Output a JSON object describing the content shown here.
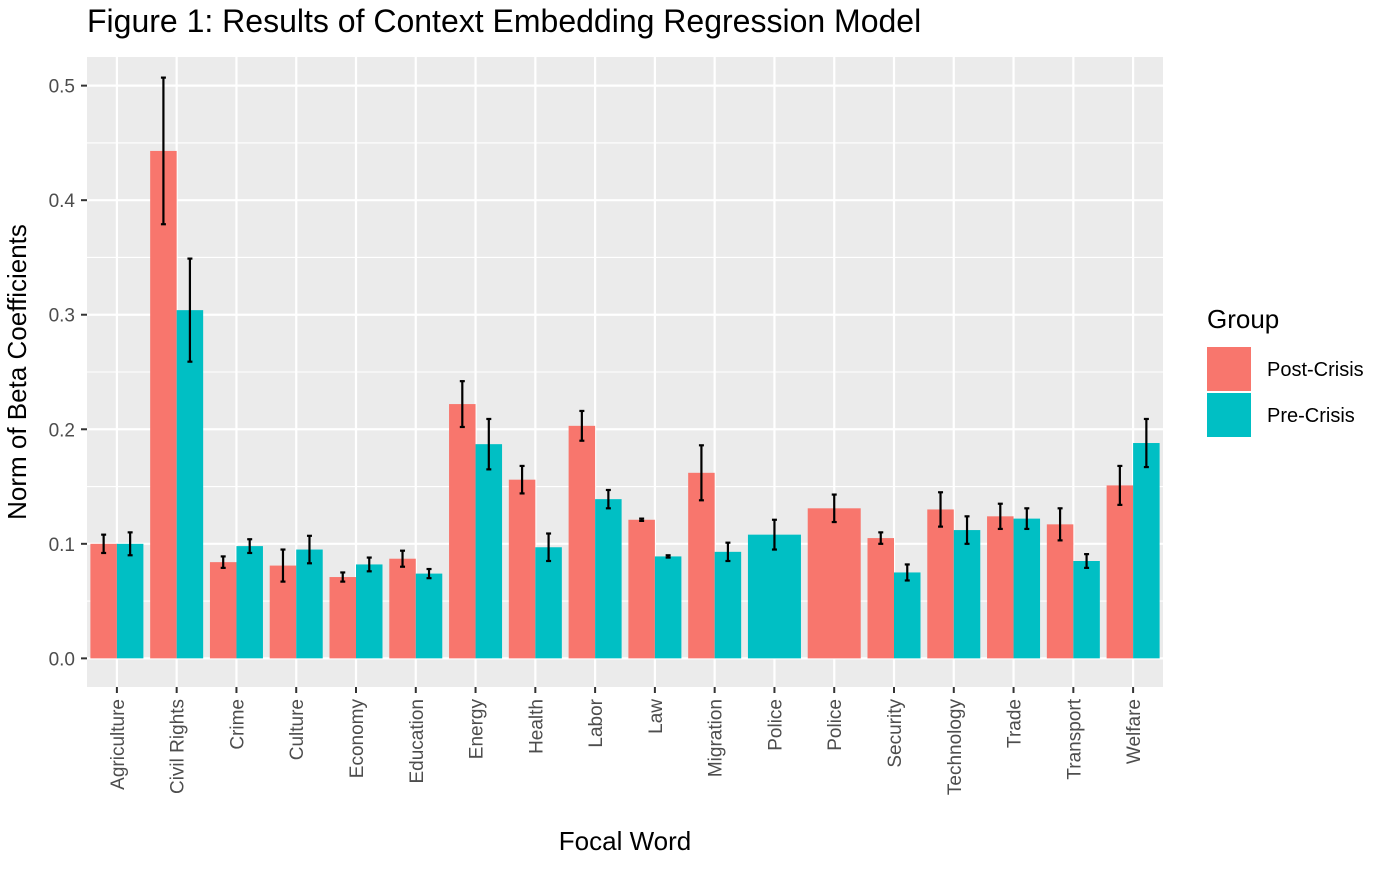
{
  "chart_data": {
    "type": "bar",
    "title": "Figure 1: Results of Context Embedding Regression Model",
    "xlabel": "Focal Word",
    "ylabel": "Norm of Beta Coefficients",
    "ylim": [
      -0.025,
      0.525
    ],
    "yticks": [
      0.0,
      0.1,
      0.2,
      0.3,
      0.4,
      0.5
    ],
    "ytick_labels": [
      "0.0",
      "0.1",
      "0.2",
      "0.3",
      "0.4",
      "0.5"
    ],
    "grid": true,
    "legend": {
      "title": "Group",
      "position": "right"
    },
    "categories": [
      "Agriculture",
      "Civil Rights",
      "Crime",
      "Culture",
      "Economy",
      "Education",
      "Energy",
      "Health",
      "Labor",
      "Law",
      "Migration",
      "Police",
      "Police",
      "Security",
      "Technology",
      "Trade",
      "Transport",
      "Welfare"
    ],
    "series": [
      {
        "name": "Post-Crisis",
        "color": "#F8766D",
        "values": [
          0.1,
          0.443,
          0.084,
          0.081,
          0.071,
          0.087,
          0.222,
          0.156,
          0.203,
          0.121,
          0.162,
          null,
          0.131,
          0.105,
          0.13,
          0.124,
          0.117,
          0.151
        ],
        "errors": [
          0.008,
          0.064,
          0.005,
          0.014,
          0.004,
          0.007,
          0.02,
          0.012,
          0.013,
          0.001,
          0.024,
          null,
          0.012,
          0.005,
          0.015,
          0.011,
          0.014,
          0.017
        ]
      },
      {
        "name": "Pre-Crisis",
        "color": "#00BFC4",
        "values": [
          0.1,
          0.304,
          0.098,
          0.095,
          0.082,
          0.074,
          0.187,
          0.097,
          0.139,
          0.089,
          0.093,
          0.108,
          null,
          0.075,
          0.112,
          0.122,
          0.085,
          0.188
        ],
        "errors": [
          0.01,
          0.045,
          0.006,
          0.012,
          0.006,
          0.004,
          0.022,
          0.012,
          0.008,
          0.001,
          0.008,
          0.013,
          null,
          0.007,
          0.012,
          0.009,
          0.006,
          0.021
        ]
      }
    ]
  }
}
